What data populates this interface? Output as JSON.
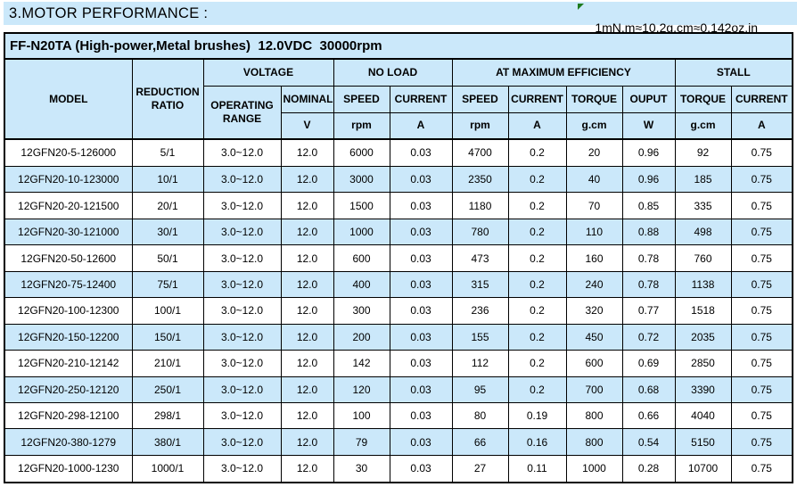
{
  "page": {
    "title": "3.MOTOR PERFORMANCE :",
    "conversion_note": "1mN.m≈10.2g.cm≈0.142oz.in"
  },
  "colors": {
    "light_blue": "#cbe8fa",
    "border": "#000000",
    "note_flag_green": "#1e7b1e"
  },
  "table": {
    "caption": "FF-N20TA (High-power,Metal brushes)  12.0VDC  30000rpm",
    "header": {
      "model": "MODEL",
      "reduction_ratio": "REDUCTION RATIO",
      "groups": [
        {
          "label": "VOLTAGE"
        },
        {
          "label": "NO LOAD"
        },
        {
          "label": "AT MAXIMUM EFFICIENCY"
        },
        {
          "label": "STALL"
        }
      ],
      "subheads": [
        "OPERATING RANGE",
        "NOMINAL",
        "SPEED",
        "CURRENT",
        "SPEED",
        "CURRENT",
        "TORQUE",
        "OUPUT",
        "TORQUE",
        "CURRENT"
      ],
      "units": [
        "V",
        "rpm",
        "A",
        "rpm",
        "A",
        "g.cm",
        "W",
        "g.cm",
        "A"
      ]
    },
    "rows": [
      [
        "12GFN20-5-126000",
        "5/1",
        "3.0~12.0",
        "12.0",
        "6000",
        "0.03",
        "4700",
        "0.2",
        "20",
        "0.96",
        "92",
        "0.75"
      ],
      [
        "12GFN20-10-123000",
        "10/1",
        "3.0~12.0",
        "12.0",
        "3000",
        "0.03",
        "2350",
        "0.2",
        "40",
        "0.96",
        "185",
        "0.75"
      ],
      [
        "12GFN20-20-121500",
        "20/1",
        "3.0~12.0",
        "12.0",
        "1500",
        "0.03",
        "1180",
        "0.2",
        "70",
        "0.85",
        "335",
        "0.75"
      ],
      [
        "12GFN20-30-121000",
        "30/1",
        "3.0~12.0",
        "12.0",
        "1000",
        "0.03",
        "780",
        "0.2",
        "110",
        "0.88",
        "498",
        "0.75"
      ],
      [
        "12GFN20-50-12600",
        "50/1",
        "3.0~12.0",
        "12.0",
        "600",
        "0.03",
        "473",
        "0.2",
        "160",
        "0.78",
        "760",
        "0.75"
      ],
      [
        "12GFN20-75-12400",
        "75/1",
        "3.0~12.0",
        "12.0",
        "400",
        "0.03",
        "315",
        "0.2",
        "240",
        "0.78",
        "1138",
        "0.75"
      ],
      [
        "12GFN20-100-12300",
        "100/1",
        "3.0~12.0",
        "12.0",
        "300",
        "0.03",
        "236",
        "0.2",
        "320",
        "0.77",
        "1518",
        "0.75"
      ],
      [
        "12GFN20-150-12200",
        "150/1",
        "3.0~12.0",
        "12.0",
        "200",
        "0.03",
        "155",
        "0.2",
        "450",
        "0.72",
        "2035",
        "0.75"
      ],
      [
        "12GFN20-210-12142",
        "210/1",
        "3.0~12.0",
        "12.0",
        "142",
        "0.03",
        "112",
        "0.2",
        "600",
        "0.69",
        "2850",
        "0.75"
      ],
      [
        "12GFN20-250-12120",
        "250/1",
        "3.0~12.0",
        "12.0",
        "120",
        "0.03",
        "95",
        "0.2",
        "700",
        "0.68",
        "3390",
        "0.75"
      ],
      [
        "12GFN20-298-12100",
        "298/1",
        "3.0~12.0",
        "12.0",
        "100",
        "0.03",
        "80",
        "0.19",
        "800",
        "0.66",
        "4040",
        "0.75"
      ],
      [
        "12GFN20-380-1279",
        "380/1",
        "3.0~12.0",
        "12.0",
        "79",
        "0.03",
        "66",
        "0.16",
        "800",
        "0.54",
        "5150",
        "0.75"
      ],
      [
        "12GFN20-1000-1230",
        "1000/1",
        "3.0~12.0",
        "12.0",
        "30",
        "0.03",
        "27",
        "0.11",
        "1000",
        "0.28",
        "10700",
        "0.75"
      ]
    ]
  },
  "chart_data": {
    "type": "table",
    "title": "FF-N20TA (High-power,Metal brushes)  12.0VDC  30000rpm",
    "columns": [
      "MODEL",
      "REDUCTION RATIO",
      "VOLTAGE OPERATING RANGE",
      "VOLTAGE NOMINAL (V)",
      "NO LOAD SPEED (rpm)",
      "NO LOAD CURRENT (A)",
      "AT MAX EFFICIENCY SPEED (rpm)",
      "AT MAX EFFICIENCY CURRENT (A)",
      "AT MAX EFFICIENCY TORQUE (g.cm)",
      "AT MAX EFFICIENCY OUPUT (W)",
      "STALL TORQUE (g.cm)",
      "STALL CURRENT (A)"
    ]
  }
}
